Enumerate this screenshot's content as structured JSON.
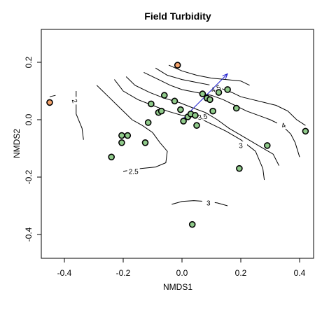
{
  "chart_data": {
    "type": "scatter",
    "title": "Field Turbidity",
    "xlabel": "NMDS1",
    "ylabel": "NMDS2",
    "xlim": [
      -0.48,
      0.45
    ],
    "ylim": [
      -0.48,
      0.3
    ],
    "xticks": [
      "-0.4",
      "-0.2",
      "0.0",
      "0.2",
      "0.4"
    ],
    "yticks": [
      "-0.4",
      "-0.2",
      "0.0",
      "0.2"
    ],
    "grid": false,
    "point_color": "#8fca8a",
    "highlight_color": "#f5a36b",
    "arrow_color": "#1c1ccf",
    "arrow": {
      "x0": 0.0,
      "y0": 0.0,
      "x1": 0.155,
      "y1": 0.16
    },
    "points": [
      {
        "x": -0.45,
        "y": 0.06,
        "highlight": true
      },
      {
        "x": -0.015,
        "y": 0.19,
        "highlight": true
      },
      {
        "x": -0.24,
        "y": -0.13
      },
      {
        "x": -0.205,
        "y": -0.055
      },
      {
        "x": -0.205,
        "y": -0.08
      },
      {
        "x": -0.185,
        "y": -0.055
      },
      {
        "x": -0.125,
        "y": -0.08
      },
      {
        "x": -0.115,
        "y": -0.01
      },
      {
        "x": -0.105,
        "y": 0.055
      },
      {
        "x": -0.08,
        "y": 0.025
      },
      {
        "x": -0.07,
        "y": 0.03
      },
      {
        "x": -0.06,
        "y": 0.085
      },
      {
        "x": -0.025,
        "y": 0.065
      },
      {
        "x": -0.005,
        "y": 0.035
      },
      {
        "x": 0.005,
        "y": -0.005
      },
      {
        "x": 0.02,
        "y": 0.01
      },
      {
        "x": 0.03,
        "y": 0.02
      },
      {
        "x": 0.045,
        "y": 0.015
      },
      {
        "x": 0.05,
        "y": -0.02
      },
      {
        "x": 0.07,
        "y": 0.09
      },
      {
        "x": 0.085,
        "y": 0.075
      },
      {
        "x": 0.095,
        "y": 0.07
      },
      {
        "x": 0.105,
        "y": 0.03
      },
      {
        "x": 0.125,
        "y": 0.095
      },
      {
        "x": 0.155,
        "y": 0.105
      },
      {
        "x": 0.185,
        "y": 0.04
      },
      {
        "x": 0.195,
        "y": -0.17
      },
      {
        "x": 0.29,
        "y": -0.09
      },
      {
        "x": 0.42,
        "y": -0.04
      },
      {
        "x": 0.035,
        "y": -0.365
      }
    ],
    "contours": [
      {
        "label": "2",
        "points": [
          [
            -0.45,
            0.08
          ],
          [
            -0.43,
            0.085
          ]
        ]
      },
      {
        "label": "2",
        "label_at": [
          -0.365,
          0.065
        ],
        "label_rot": 75,
        "points": [
          [
            -0.36,
            0.1
          ],
          [
            -0.36,
            0.02
          ],
          [
            -0.34,
            -0.03
          ],
          [
            -0.335,
            -0.07
          ]
        ]
      },
      {
        "label": "2.5",
        "label_at": [
          -0.165,
          -0.18
        ],
        "label_rot": 0,
        "points": [
          [
            -0.29,
            0.12
          ],
          [
            -0.25,
            0.08
          ],
          [
            -0.21,
            0.04
          ],
          [
            -0.17,
            0.0
          ],
          [
            -0.135,
            -0.02
          ],
          [
            -0.1,
            -0.045
          ],
          [
            -0.075,
            -0.08
          ],
          [
            -0.05,
            -0.11
          ],
          [
            -0.055,
            -0.15
          ],
          [
            -0.09,
            -0.165
          ],
          [
            -0.14,
            -0.17
          ],
          [
            -0.2,
            -0.18
          ]
        ]
      },
      {
        "label": "3.5",
        "label_at": [
          0.07,
          0.01
        ],
        "label_rot": -10,
        "points": [
          [
            -0.23,
            0.14
          ],
          [
            -0.2,
            0.1
          ],
          [
            -0.15,
            0.07
          ],
          [
            -0.1,
            0.05
          ],
          [
            -0.05,
            0.03
          ],
          [
            0.0,
            0.015
          ],
          [
            0.05,
            0.01
          ],
          [
            0.1,
            -0.015
          ],
          [
            0.15,
            -0.04
          ],
          [
            0.2,
            -0.07
          ],
          [
            0.25,
            -0.11
          ],
          [
            0.275,
            -0.17
          ],
          [
            0.28,
            -0.21
          ]
        ]
      },
      {
        "label": "3",
        "label_at": [
          0.2,
          -0.09
        ],
        "label_rot": -5,
        "points": [
          [
            -0.19,
            0.15
          ],
          [
            -0.16,
            0.12
          ],
          [
            -0.11,
            0.095
          ],
          [
            -0.06,
            0.075
          ],
          [
            -0.01,
            0.06
          ],
          [
            0.04,
            0.04
          ],
          [
            0.08,
            0.025
          ],
          [
            0.12,
            0.0
          ],
          [
            0.16,
            -0.03
          ],
          [
            0.21,
            -0.06
          ],
          [
            0.26,
            -0.09
          ],
          [
            0.31,
            -0.12
          ],
          [
            0.33,
            -0.16
          ]
        ]
      },
      {
        "label": "4",
        "label_at": [
          0.345,
          -0.02
        ],
        "label_rot": -25,
        "points": [
          [
            -0.13,
            0.165
          ],
          [
            -0.08,
            0.14
          ],
          [
            -0.04,
            0.12
          ],
          [
            0.0,
            0.105
          ],
          [
            0.05,
            0.095
          ],
          [
            0.1,
            0.085
          ],
          [
            0.14,
            0.07
          ],
          [
            0.18,
            0.05
          ],
          [
            0.22,
            0.03
          ],
          [
            0.26,
            0.015
          ],
          [
            0.3,
            0.0
          ],
          [
            0.34,
            -0.02
          ],
          [
            0.37,
            -0.05
          ],
          [
            0.385,
            -0.08
          ],
          [
            0.4,
            -0.13
          ]
        ]
      },
      {
        "label": "4.5",
        "label_at": [
          0.115,
          0.108
        ],
        "label_rot": -20,
        "points": [
          [
            -0.09,
            0.18
          ],
          [
            -0.05,
            0.155
          ],
          [
            0.0,
            0.14
          ],
          [
            0.05,
            0.13
          ],
          [
            0.1,
            0.12
          ],
          [
            0.13,
            0.11
          ],
          [
            0.17,
            0.095
          ],
          [
            0.2,
            0.08
          ],
          [
            0.24,
            0.07
          ],
          [
            0.28,
            0.06
          ],
          [
            0.32,
            0.05
          ],
          [
            0.36,
            0.03
          ],
          [
            0.39,
            0.0
          ],
          [
            0.42,
            -0.02
          ]
        ]
      },
      {
        "label": "4.5",
        "points": [
          [
            -0.045,
            0.19
          ],
          [
            0.0,
            0.17
          ],
          [
            0.05,
            0.155
          ],
          [
            0.1,
            0.145
          ],
          [
            0.15,
            0.14
          ],
          [
            0.2,
            0.135
          ],
          [
            0.23,
            0.12
          ]
        ]
      },
      {
        "label": "3",
        "label_at": [
          0.09,
          -0.29
        ],
        "label_rot": 0,
        "points": [
          [
            -0.035,
            -0.295
          ],
          [
            0.0,
            -0.285
          ],
          [
            0.04,
            -0.282
          ],
          [
            0.08,
            -0.285
          ],
          [
            0.12,
            -0.29
          ],
          [
            0.155,
            -0.3
          ]
        ]
      }
    ]
  }
}
